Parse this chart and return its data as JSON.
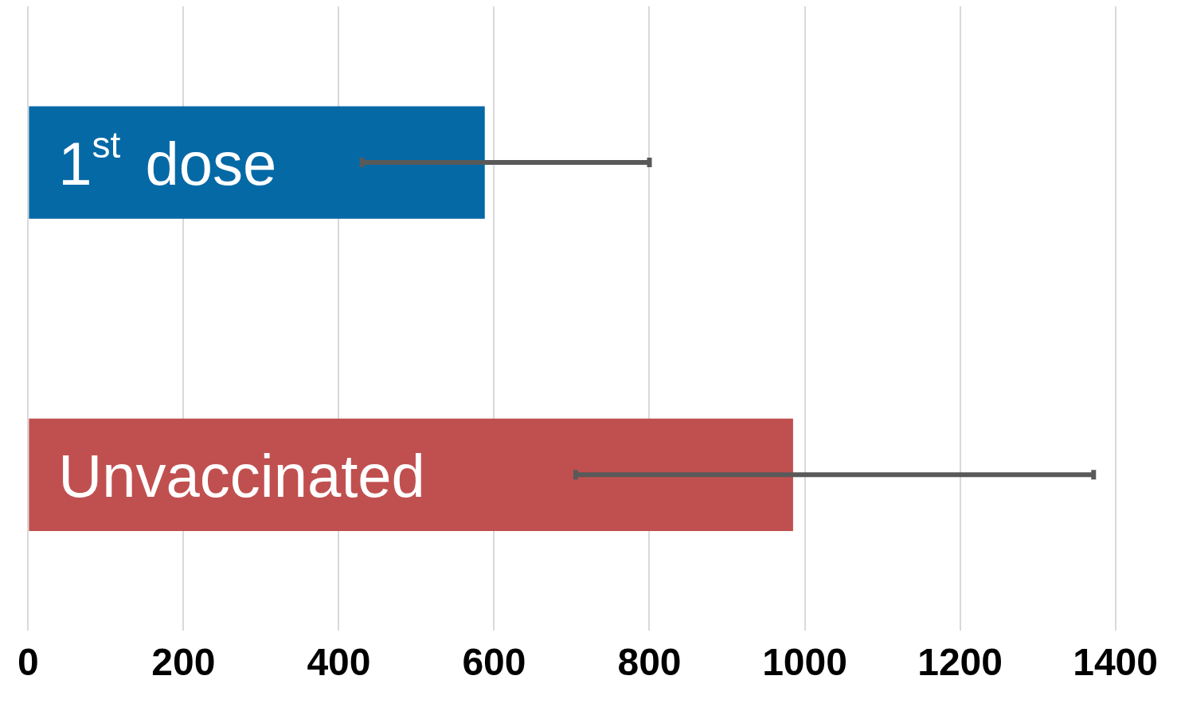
{
  "chart_data": {
    "type": "bar",
    "orientation": "horizontal",
    "categories": [
      "1$^{st}$ dose",
      "Unvaccinated"
    ],
    "values": [
      588,
      985
    ],
    "colors": [
      "#0569a6",
      "#c0504f"
    ],
    "errors": [
      [
        430,
        800
      ],
      [
        705,
        1372
      ]
    ],
    "xlim": [
      0,
      1400
    ],
    "xticks": [
      0,
      200,
      400,
      600,
      800,
      1000,
      1200,
      1400
    ],
    "grid": "x",
    "legend": false
  }
}
